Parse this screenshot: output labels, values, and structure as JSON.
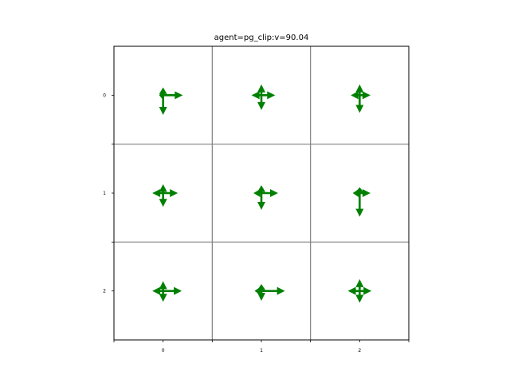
{
  "chart_data": {
    "type": "quiver-grid",
    "title": "agent=pg_clip:v=90.04",
    "xlabel": "",
    "ylabel": "",
    "x_ticks": [
      "0",
      "1",
      "2"
    ],
    "y_ticks": [
      "0",
      "1",
      "2"
    ],
    "xlim": [
      -0.5,
      2.5
    ],
    "ylim": [
      2.5,
      -0.5
    ],
    "grid": true,
    "colors": {
      "arrow": "#008000",
      "grid": "#808080",
      "axes": "#000000"
    },
    "cells": [
      {
        "row": 0,
        "col": 0,
        "up": 0.08,
        "down": 0.2,
        "left": 0.04,
        "right": 0.2
      },
      {
        "row": 0,
        "col": 1,
        "up": 0.11,
        "down": 0.15,
        "left": 0.1,
        "right": 0.14
      },
      {
        "row": 0,
        "col": 2,
        "up": 0.11,
        "down": 0.18,
        "left": 0.09,
        "right": 0.11
      },
      {
        "row": 1,
        "col": 0,
        "up": 0.09,
        "down": 0.14,
        "left": 0.11,
        "right": 0.15
      },
      {
        "row": 1,
        "col": 1,
        "up": 0.08,
        "down": 0.17,
        "left": 0.08,
        "right": 0.17
      },
      {
        "row": 1,
        "col": 2,
        "up": 0.06,
        "down": 0.24,
        "left": 0.07,
        "right": 0.11
      },
      {
        "row": 2,
        "col": 0,
        "up": 0.1,
        "down": 0.11,
        "left": 0.11,
        "right": 0.19
      },
      {
        "row": 2,
        "col": 1,
        "up": 0.07,
        "down": 0.1,
        "left": 0.07,
        "right": 0.24
      },
      {
        "row": 2,
        "col": 2,
        "up": 0.12,
        "down": 0.12,
        "left": 0.12,
        "right": 0.12
      }
    ]
  }
}
